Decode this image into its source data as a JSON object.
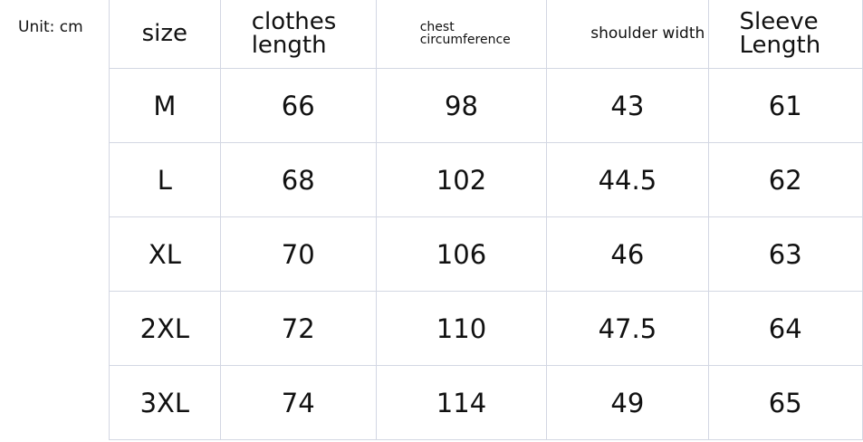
{
  "unit_label": "Unit: cm",
  "headers": [
    "size",
    "clothes length",
    "chest circumference",
    "shoulder width",
    "Sleeve Length"
  ],
  "rows": [
    [
      "M",
      "66",
      "98",
      "43",
      "61"
    ],
    [
      "L",
      "68",
      "102",
      "44.5",
      "62"
    ],
    [
      "XL",
      "70",
      "106",
      "46",
      "63"
    ],
    [
      "2XL",
      "72",
      "110",
      "47.5",
      "64"
    ],
    [
      "3XL",
      "74",
      "114",
      "49",
      "65"
    ]
  ]
}
